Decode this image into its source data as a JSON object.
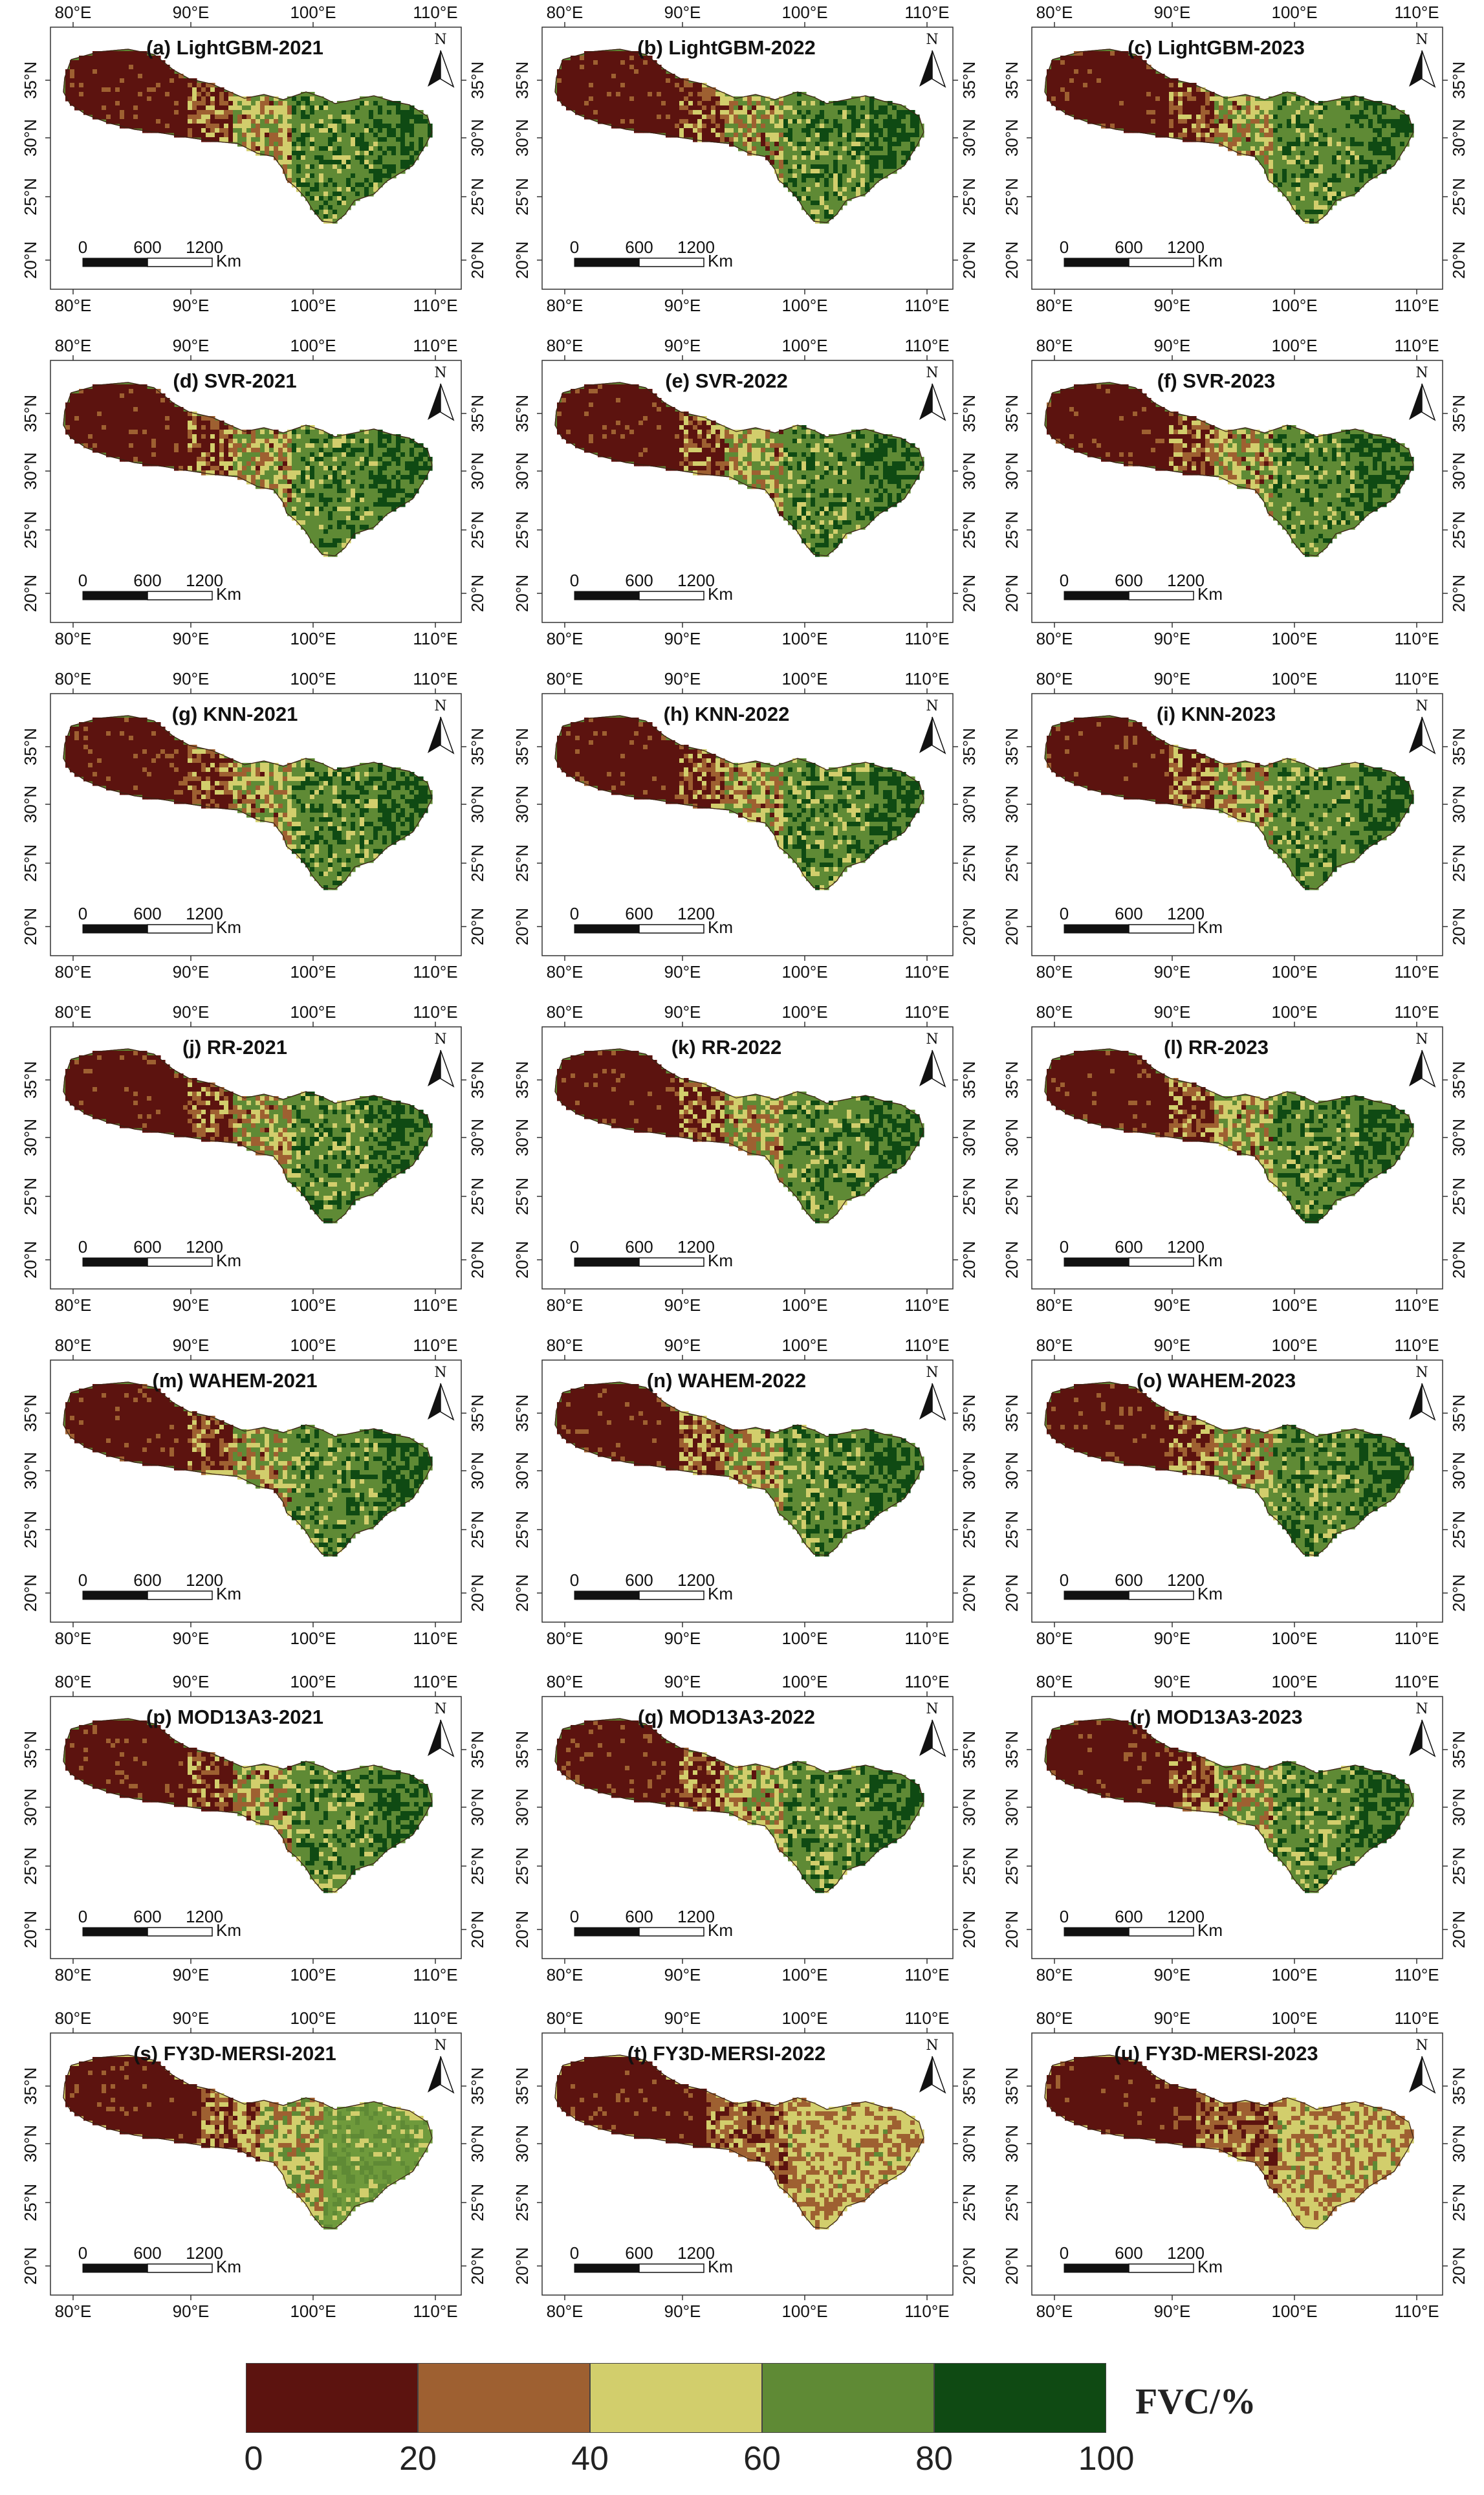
{
  "axes": {
    "top_lon_labels": [
      "80°E",
      "90°E",
      "100°E",
      "110°E"
    ],
    "bottom_lon_labels": [
      "80°E",
      "90°E",
      "100°E",
      "110°E"
    ],
    "left_lat_labels": [
      "35°N",
      "30°N",
      "25°N",
      "20°N"
    ],
    "right_lat_labels": [
      "35°N",
      "30°N",
      "25°N",
      "20°N"
    ]
  },
  "north_arrow_label": "N",
  "scale_bar": {
    "labels": [
      "0",
      "600",
      "1200"
    ],
    "unit": "Km"
  },
  "panels": [
    {
      "title": "(a)  LightGBM-2021",
      "scheme": "std"
    },
    {
      "title": "(b)  LightGBM-2022",
      "scheme": "std"
    },
    {
      "title": "(c)  LightGBM-2023",
      "scheme": "std"
    },
    {
      "title": "(d)  SVR-2021",
      "scheme": "std"
    },
    {
      "title": "(e)  SVR-2022",
      "scheme": "std"
    },
    {
      "title": "(f)  SVR-2023",
      "scheme": "std"
    },
    {
      "title": "(g)  KNN-2021",
      "scheme": "std"
    },
    {
      "title": "(h)  KNN-2022",
      "scheme": "std"
    },
    {
      "title": "(i)  KNN-2023",
      "scheme": "std"
    },
    {
      "title": "(j)  RR-2021",
      "scheme": "std"
    },
    {
      "title": "(k)  RR-2022",
      "scheme": "std"
    },
    {
      "title": "(l)  RR-2023",
      "scheme": "std"
    },
    {
      "title": "(m)  WAHEM-2021",
      "scheme": "std"
    },
    {
      "title": "(n)  WAHEM-2022",
      "scheme": "std"
    },
    {
      "title": "(o)  WAHEM-2023",
      "scheme": "std"
    },
    {
      "title": "(p)  MOD13A3-2021",
      "scheme": "std"
    },
    {
      "title": "(q)  MOD13A3-2022",
      "scheme": "std"
    },
    {
      "title": "(r)  MOD13A3-2023",
      "scheme": "std"
    },
    {
      "title": "(s)  FY3D-MERSI-2021",
      "scheme": "fy2021"
    },
    {
      "title": "(t)  FY3D-MERSI-2022",
      "scheme": "fy"
    },
    {
      "title": "(u)  FY3D-MERSI-2023",
      "scheme": "fy"
    }
  ],
  "legend": {
    "title": "FVC/%",
    "ticks": [
      "0",
      "20",
      "40",
      "60",
      "80",
      "100"
    ],
    "colors": [
      "#5c130f",
      "#9e6031",
      "#d2ce6c",
      "#5f8a35",
      "#0f4a13"
    ]
  }
}
